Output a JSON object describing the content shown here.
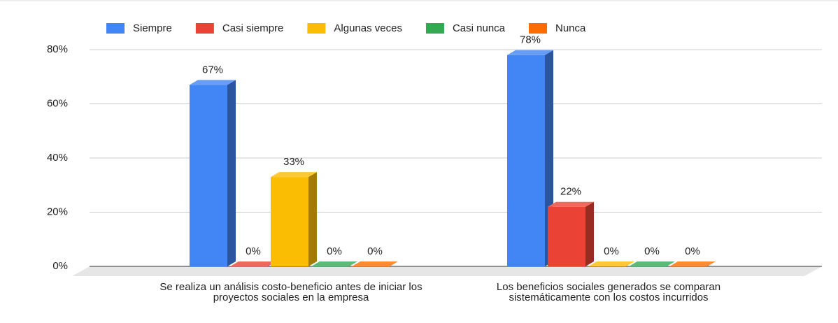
{
  "chart_data": {
    "type": "bar3d",
    "categories": [
      "Se realiza un análisis costo-beneficio antes de iniciar los proyectos sociales en la empresa",
      "Los beneficios sociales generados se comparan sistemáticamente con los costos incurridos"
    ],
    "series": [
      {
        "name": "Siempre",
        "color": "#4285f4",
        "values": [
          67,
          78
        ],
        "value_labels": [
          "67%",
          "78%"
        ]
      },
      {
        "name": "Casi siempre",
        "color": "#ea4335",
        "values": [
          0,
          22
        ],
        "value_labels": [
          "0%",
          "22%"
        ]
      },
      {
        "name": "Algunas veces",
        "color": "#fbbc04",
        "values": [
          33,
          0
        ],
        "value_labels": [
          "33%",
          "0%"
        ]
      },
      {
        "name": "Casi nunca",
        "color": "#34a853",
        "values": [
          0,
          0
        ],
        "value_labels": [
          "0%",
          "0%"
        ]
      },
      {
        "name": "Nunca",
        "color": "#ff6d01",
        "values": [
          0,
          0
        ],
        "value_labels": [
          "0%",
          "0%"
        ]
      }
    ],
    "ylim": [
      0,
      80
    ],
    "yticks": [
      {
        "value": 0,
        "label": "0%"
      },
      {
        "value": 20,
        "label": "20%"
      },
      {
        "value": 40,
        "label": "40%"
      },
      {
        "value": 60,
        "label": "60%"
      },
      {
        "value": 80,
        "label": "80%"
      }
    ],
    "grid": true,
    "legend": "top"
  }
}
